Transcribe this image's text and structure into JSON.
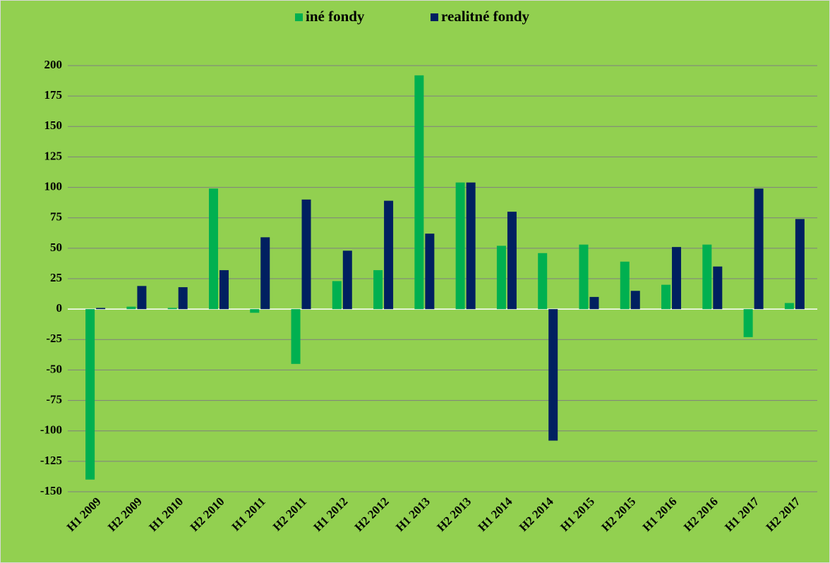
{
  "chart_data": {
    "type": "bar",
    "categories": [
      "H1 2009",
      "H2 2009",
      "H1 2010",
      "H2 2010",
      "H1 2011",
      "H2 2011",
      "H1 2012",
      "H2 2012",
      "H1 2013",
      "H2 2013",
      "H1 2014",
      "H2 2014",
      "H1 2015",
      "H2 2015",
      "H1 2016",
      "H2 2016",
      "H1 2017",
      "H2 2017"
    ],
    "series": [
      {
        "name": "iné fondy",
        "color": "#00b050",
        "values": [
          -140,
          2,
          1,
          99,
          -3,
          -45,
          23,
          32,
          192,
          104,
          52,
          46,
          53,
          39,
          20,
          53,
          -23,
          5
        ]
      },
      {
        "name": "realitné fondy",
        "color": "#002060",
        "values": [
          1,
          19,
          18,
          32,
          59,
          90,
          48,
          89,
          62,
          104,
          80,
          -108,
          10,
          15,
          51,
          35,
          99,
          74
        ]
      }
    ],
    "ylim": [
      -150,
      200
    ],
    "yticks": [
      -150,
      -125,
      -100,
      -75,
      -50,
      -25,
      0,
      25,
      50,
      75,
      100,
      125,
      150,
      175,
      200
    ],
    "grid": true,
    "legend": "top"
  }
}
